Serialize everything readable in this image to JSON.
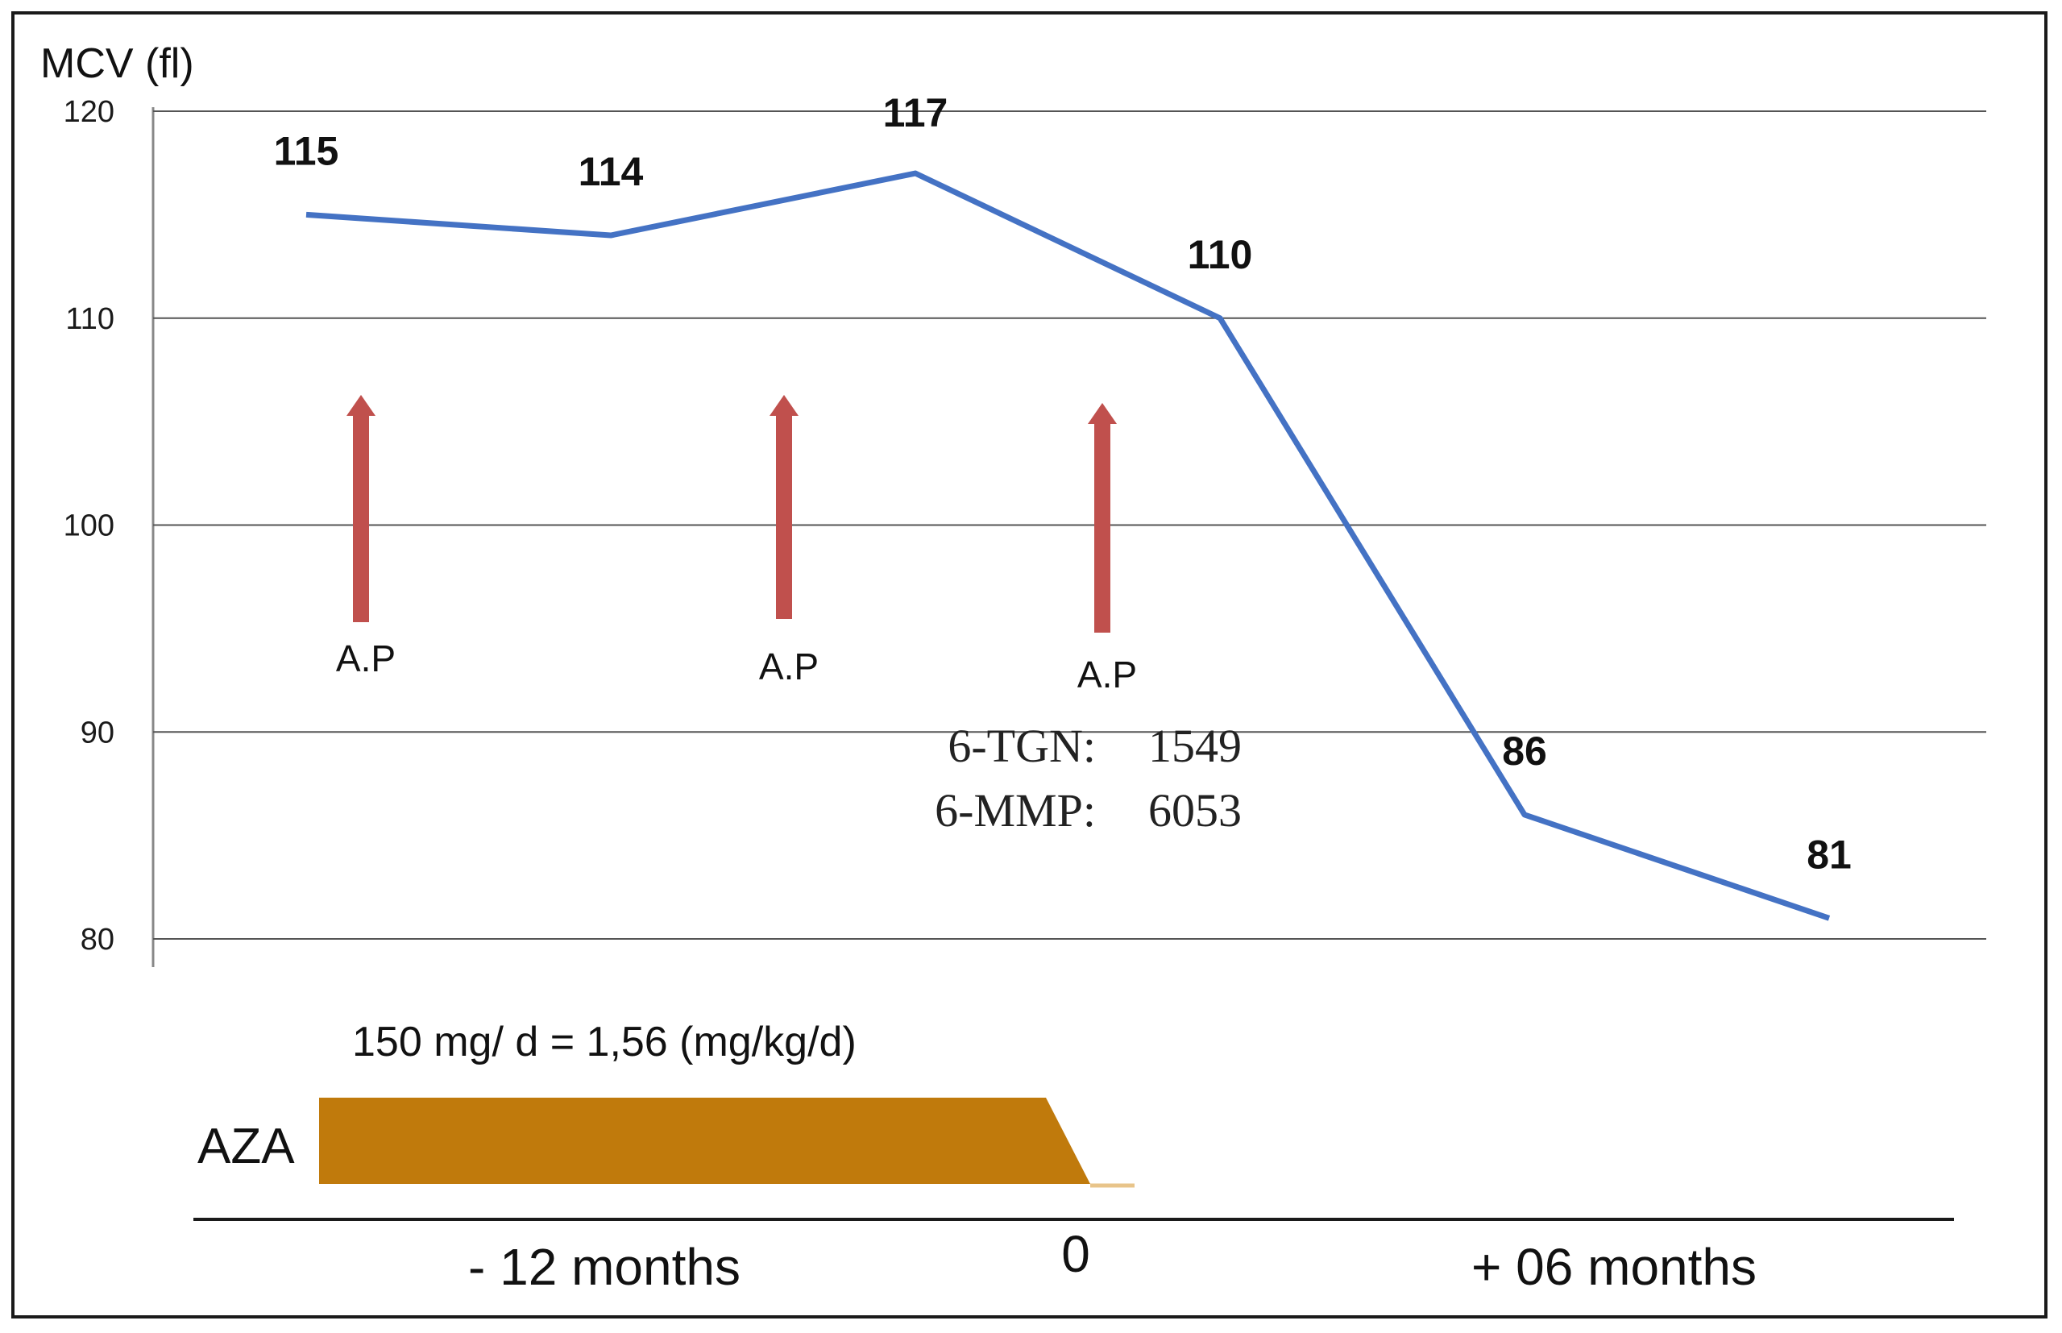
{
  "chart_data": {
    "type": "line",
    "ylabel": "MCV (fl)",
    "ylim": [
      80,
      120
    ],
    "yticks": [
      "120",
      "110",
      "100",
      "90",
      "80"
    ],
    "grid": true,
    "series": [
      {
        "name": "MCV",
        "color": "#4472c4",
        "values": [
          115,
          114,
          117,
          110,
          86,
          81
        ]
      }
    ],
    "data_labels": [
      "115",
      "114",
      "117",
      "110",
      "86",
      "81"
    ],
    "annotations": {
      "arrows": [
        {
          "label": "A.P",
          "color": "#c0504d"
        },
        {
          "label": "A.P",
          "color": "#c0504d"
        },
        {
          "label": "A.P",
          "color": "#c0504d"
        }
      ],
      "metabolites": [
        {
          "name": "6-TGN:",
          "value": "1549"
        },
        {
          "name": "6-MMP:",
          "value": "6053"
        }
      ]
    },
    "treatment": {
      "drug": "AZA",
      "dose": "150 mg/ d = 1,56 (mg/kg/d)",
      "color": "#c07a0c"
    },
    "timeline": [
      "- 12 months",
      "0",
      "+ 06 months"
    ]
  }
}
